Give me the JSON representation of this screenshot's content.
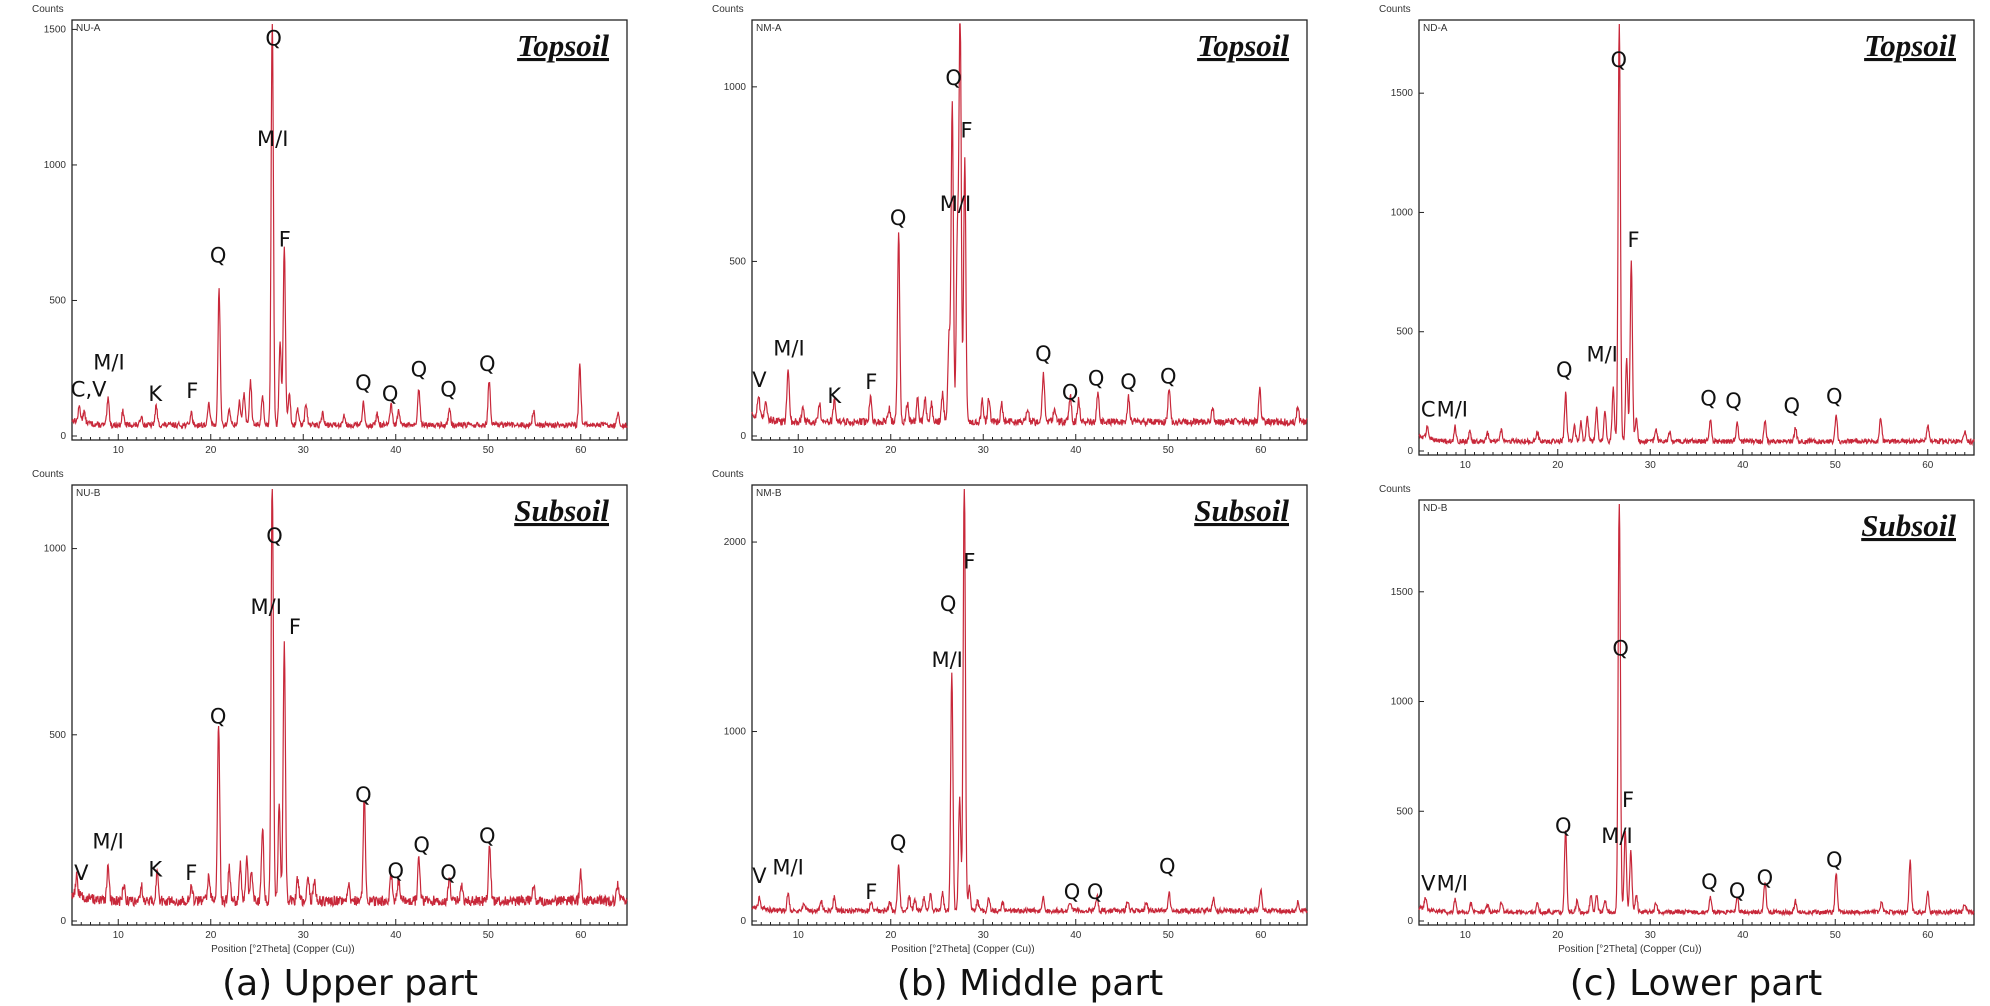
{
  "figure": {
    "x_axis_label": "Position [°2Theta] (Copper (Cu))",
    "y_axis_label": "Counts",
    "captions": [
      "(a) Upper part",
      "(b) Middle part",
      "(c) Lower part"
    ]
  },
  "chart_data": [
    {
      "type": "line",
      "panel_id": "NU-A",
      "soil_label": "Topsoil",
      "xlim": [
        5,
        65
      ],
      "ylim": [
        0,
        1520
      ],
      "y_ticks": [
        0,
        500,
        1000,
        1500
      ],
      "x_ticks": [
        10,
        20,
        30,
        40,
        50,
        60
      ],
      "line_color": "#c8283a",
      "baseline": 30,
      "peaks": [
        [
          5.8,
          55
        ],
        [
          6.3,
          40
        ],
        [
          8.9,
          95
        ],
        [
          10.5,
          50
        ],
        [
          12.5,
          35
        ],
        [
          14.1,
          70
        ],
        [
          17.9,
          45
        ],
        [
          19.8,
          80
        ],
        [
          20.9,
          500
        ],
        [
          22.0,
          60
        ],
        [
          23.1,
          90
        ],
        [
          23.6,
          120
        ],
        [
          24.3,
          160
        ],
        [
          25.6,
          110
        ],
        [
          26.65,
          1520
        ],
        [
          27.5,
          300
        ],
        [
          27.95,
          660
        ],
        [
          28.5,
          120
        ],
        [
          29.4,
          60
        ],
        [
          30.3,
          80
        ],
        [
          32.1,
          45
        ],
        [
          34.4,
          40
        ],
        [
          36.5,
          80
        ],
        [
          38.0,
          40
        ],
        [
          39.5,
          75
        ],
        [
          40.3,
          50
        ],
        [
          42.5,
          130
        ],
        [
          45.8,
          60
        ],
        [
          50.1,
          165
        ],
        [
          54.9,
          50
        ],
        [
          59.9,
          220
        ],
        [
          64.0,
          45
        ]
      ],
      "annotations": [
        {
          "text": "C,V",
          "x": 6.8,
          "y": 145
        },
        {
          "text": "M/I",
          "x": 9.0,
          "y": 245
        },
        {
          "text": "K",
          "x": 14.0,
          "y": 130
        },
        {
          "text": "F",
          "x": 18.0,
          "y": 140
        },
        {
          "text": "Q",
          "x": 20.8,
          "y": 640
        },
        {
          "text": "Q",
          "x": 26.8,
          "y": 1440
        },
        {
          "text": "M/I",
          "x": 26.7,
          "y": 1070
        },
        {
          "text": "F",
          "x": 28.0,
          "y": 700
        },
        {
          "text": "Q",
          "x": 36.5,
          "y": 170
        },
        {
          "text": "Q",
          "x": 39.4,
          "y": 130
        },
        {
          "text": "Q",
          "x": 42.5,
          "y": 220
        },
        {
          "text": "Q",
          "x": 45.7,
          "y": 145
        },
        {
          "text": "Q",
          "x": 49.9,
          "y": 240
        }
      ]
    },
    {
      "type": "line",
      "panel_id": "NU-B",
      "soil_label": "Subsoil",
      "xlim": [
        5,
        65
      ],
      "ylim": [
        0,
        1160
      ],
      "y_ticks": [
        0,
        500,
        1000
      ],
      "x_ticks": [
        10,
        20,
        30,
        40,
        50,
        60
      ],
      "line_color": "#c8283a",
      "baseline": 40,
      "peaks": [
        [
          5.5,
          50
        ],
        [
          8.9,
          90
        ],
        [
          10.6,
          45
        ],
        [
          12.5,
          40
        ],
        [
          14.2,
          75
        ],
        [
          17.9,
          45
        ],
        [
          19.8,
          70
        ],
        [
          20.85,
          480
        ],
        [
          22.0,
          90
        ],
        [
          23.2,
          100
        ],
        [
          23.9,
          110
        ],
        [
          24.4,
          80
        ],
        [
          25.6,
          200
        ],
        [
          26.65,
          1160
        ],
        [
          27.4,
          250
        ],
        [
          27.95,
          690
        ],
        [
          29.4,
          60
        ],
        [
          30.5,
          70
        ],
        [
          31.2,
          50
        ],
        [
          34.9,
          40
        ],
        [
          36.6,
          275
        ],
        [
          39.5,
          70
        ],
        [
          40.3,
          60
        ],
        [
          42.5,
          120
        ],
        [
          45.8,
          60
        ],
        [
          47.1,
          40
        ],
        [
          50.15,
          155
        ],
        [
          54.9,
          40
        ],
        [
          60.0,
          75
        ],
        [
          64.0,
          45
        ]
      ],
      "annotations": [
        {
          "text": "V",
          "x": 6.0,
          "y": 110
        },
        {
          "text": "M/I",
          "x": 8.9,
          "y": 195
        },
        {
          "text": "K",
          "x": 14.0,
          "y": 120
        },
        {
          "text": "F",
          "x": 17.9,
          "y": 110
        },
        {
          "text": "Q",
          "x": 20.8,
          "y": 530
        },
        {
          "text": "Q",
          "x": 26.9,
          "y": 1015
        },
        {
          "text": "M/I",
          "x": 26.0,
          "y": 825
        },
        {
          "text": "F",
          "x": 29.1,
          "y": 770
        },
        {
          "text": "Q",
          "x": 36.5,
          "y": 320
        },
        {
          "text": "Q",
          "x": 40.0,
          "y": 115
        },
        {
          "text": "Q",
          "x": 42.8,
          "y": 185
        },
        {
          "text": "Q",
          "x": 45.7,
          "y": 110
        },
        {
          "text": "Q",
          "x": 49.9,
          "y": 210
        }
      ]
    },
    {
      "type": "line",
      "panel_id": "NM-A",
      "soil_label": "Topsoil",
      "xlim": [
        5,
        65
      ],
      "ylim": [
        0,
        1180
      ],
      "y_ticks": [
        0,
        500,
        1000
      ],
      "x_ticks": [
        10,
        20,
        30,
        40,
        50,
        60
      ],
      "line_color": "#c8283a",
      "baseline": 30,
      "peaks": [
        [
          5.7,
          65
        ],
        [
          6.5,
          55
        ],
        [
          8.9,
          150
        ],
        [
          10.5,
          45
        ],
        [
          12.3,
          50
        ],
        [
          13.9,
          65
        ],
        [
          17.8,
          70
        ],
        [
          19.8,
          40
        ],
        [
          20.85,
          545
        ],
        [
          21.8,
          55
        ],
        [
          22.9,
          65
        ],
        [
          23.7,
          70
        ],
        [
          24.4,
          55
        ],
        [
          25.6,
          80
        ],
        [
          26.3,
          250
        ],
        [
          26.65,
          920
        ],
        [
          27.2,
          520
        ],
        [
          27.5,
          1180
        ],
        [
          28.0,
          750
        ],
        [
          29.9,
          60
        ],
        [
          30.6,
          70
        ],
        [
          32.0,
          50
        ],
        [
          34.8,
          40
        ],
        [
          36.5,
          140
        ],
        [
          37.7,
          45
        ],
        [
          39.4,
          75
        ],
        [
          40.3,
          65
        ],
        [
          42.4,
          85
        ],
        [
          45.7,
          70
        ],
        [
          50.1,
          95
        ],
        [
          54.8,
          45
        ],
        [
          59.9,
          90
        ],
        [
          64.0,
          45
        ]
      ],
      "annotations": [
        {
          "text": "V",
          "x": 5.8,
          "y": 140
        },
        {
          "text": "M/I",
          "x": 9.0,
          "y": 230
        },
        {
          "text": "K",
          "x": 13.9,
          "y": 95
        },
        {
          "text": "F",
          "x": 17.9,
          "y": 135
        },
        {
          "text": "Q",
          "x": 20.8,
          "y": 605
        },
        {
          "text": "Q",
          "x": 26.8,
          "y": 1005
        },
        {
          "text": "F",
          "x": 28.2,
          "y": 855
        },
        {
          "text": "M/I",
          "x": 27.0,
          "y": 645
        },
        {
          "text": "Q",
          "x": 36.5,
          "y": 215
        },
        {
          "text": "Q",
          "x": 39.4,
          "y": 105
        },
        {
          "text": "Q",
          "x": 42.2,
          "y": 145
        },
        {
          "text": "Q",
          "x": 45.7,
          "y": 135
        },
        {
          "text": "Q",
          "x": 50.0,
          "y": 150
        }
      ]
    },
    {
      "type": "line",
      "panel_id": "NM-B",
      "soil_label": "Subsoil",
      "xlim": [
        5,
        65
      ],
      "ylim": [
        0,
        2280
      ],
      "y_ticks": [
        0,
        1000,
        2000
      ],
      "x_ticks": [
        10,
        20,
        30,
        40,
        50,
        60
      ],
      "line_color": "#c8283a",
      "baseline": 40,
      "peaks": [
        [
          5.8,
          60
        ],
        [
          8.9,
          100
        ],
        [
          10.6,
          45
        ],
        [
          12.5,
          50
        ],
        [
          13.9,
          75
        ],
        [
          17.9,
          50
        ],
        [
          19.9,
          45
        ],
        [
          20.85,
          240
        ],
        [
          22.0,
          80
        ],
        [
          22.6,
          60
        ],
        [
          23.6,
          70
        ],
        [
          24.3,
          95
        ],
        [
          25.6,
          100
        ],
        [
          26.6,
          1260
        ],
        [
          27.45,
          600
        ],
        [
          27.95,
          2280
        ],
        [
          28.5,
          130
        ],
        [
          29.4,
          50
        ],
        [
          30.6,
          60
        ],
        [
          32.1,
          40
        ],
        [
          36.5,
          65
        ],
        [
          39.4,
          50
        ],
        [
          42.3,
          80
        ],
        [
          45.6,
          55
        ],
        [
          47.6,
          45
        ],
        [
          50.1,
          90
        ],
        [
          54.9,
          65
        ],
        [
          60.0,
          110
        ],
        [
          64.0,
          45
        ]
      ],
      "annotations": [
        {
          "text": "V",
          "x": 5.8,
          "y": 200
        },
        {
          "text": "M/I",
          "x": 8.9,
          "y": 245
        },
        {
          "text": "F",
          "x": 17.9,
          "y": 115
        },
        {
          "text": "Q",
          "x": 20.8,
          "y": 375
        },
        {
          "text": "Q",
          "x": 26.2,
          "y": 1635
        },
        {
          "text": "M/I",
          "x": 26.1,
          "y": 1340
        },
        {
          "text": "F",
          "x": 28.5,
          "y": 1860
        },
        {
          "text": "Q",
          "x": 39.6,
          "y": 115
        },
        {
          "text": "Q",
          "x": 42.1,
          "y": 115
        },
        {
          "text": "Q",
          "x": 49.9,
          "y": 250
        }
      ]
    },
    {
      "type": "line",
      "panel_id": "ND-A",
      "soil_label": "Topsoil",
      "xlim": [
        5,
        65
      ],
      "ylim": [
        0,
        1790
      ],
      "y_ticks": [
        0,
        500,
        1000,
        1500
      ],
      "x_ticks": [
        10,
        20,
        30,
        40,
        50,
        60
      ],
      "line_color": "#c8283a",
      "baseline": 30,
      "peaks": [
        [
          5.9,
          50
        ],
        [
          8.9,
          60
        ],
        [
          10.5,
          40
        ],
        [
          12.4,
          35
        ],
        [
          13.9,
          45
        ],
        [
          17.8,
          40
        ],
        [
          20.85,
          200
        ],
        [
          21.8,
          60
        ],
        [
          22.5,
          85
        ],
        [
          23.2,
          100
        ],
        [
          24.2,
          140
        ],
        [
          25.1,
          130
        ],
        [
          26.0,
          220
        ],
        [
          26.65,
          1790
        ],
        [
          27.45,
          350
        ],
        [
          27.95,
          750
        ],
        [
          28.5,
          90
        ],
        [
          30.6,
          50
        ],
        [
          32.1,
          40
        ],
        [
          36.5,
          90
        ],
        [
          39.4,
          80
        ],
        [
          42.4,
          85
        ],
        [
          45.7,
          55
        ],
        [
          50.1,
          110
        ],
        [
          54.9,
          105
        ],
        [
          60.0,
          70
        ],
        [
          64.0,
          40
        ]
      ],
      "annotations": [
        {
          "text": "C",
          "x": 6.0,
          "y": 145
        },
        {
          "text": "M/I",
          "x": 8.6,
          "y": 145
        },
        {
          "text": "Q",
          "x": 20.7,
          "y": 310
        },
        {
          "text": "M/I",
          "x": 24.8,
          "y": 375
        },
        {
          "text": "Q",
          "x": 26.6,
          "y": 1610
        },
        {
          "text": "F",
          "x": 28.2,
          "y": 855
        },
        {
          "text": "Q",
          "x": 36.3,
          "y": 190
        },
        {
          "text": "Q",
          "x": 39.0,
          "y": 180
        },
        {
          "text": "Q",
          "x": 45.3,
          "y": 160
        },
        {
          "text": "Q",
          "x": 49.9,
          "y": 200
        }
      ]
    },
    {
      "type": "line",
      "panel_id": "ND-B",
      "soil_label": "Subsoil",
      "xlim": [
        5,
        65
      ],
      "ylim": [
        0,
        1900
      ],
      "y_ticks": [
        0,
        500,
        1000,
        1500
      ],
      "x_ticks": [
        10,
        20,
        30,
        40,
        50,
        60
      ],
      "line_color": "#c8283a",
      "baseline": 30,
      "peaks": [
        [
          5.7,
          50
        ],
        [
          8.9,
          60
        ],
        [
          10.6,
          40
        ],
        [
          12.4,
          35
        ],
        [
          13.9,
          45
        ],
        [
          17.8,
          40
        ],
        [
          20.85,
          380
        ],
        [
          22.1,
          55
        ],
        [
          23.6,
          80
        ],
        [
          24.2,
          75
        ],
        [
          25.1,
          60
        ],
        [
          26.65,
          1900
        ],
        [
          27.3,
          380
        ],
        [
          27.9,
          280
        ],
        [
          28.5,
          80
        ],
        [
          30.6,
          45
        ],
        [
          36.5,
          70
        ],
        [
          39.4,
          70
        ],
        [
          42.4,
          140
        ],
        [
          45.7,
          50
        ],
        [
          50.1,
          180
        ],
        [
          55.0,
          45
        ],
        [
          58.1,
          230
        ],
        [
          60.0,
          90
        ],
        [
          64.0,
          40
        ]
      ],
      "annotations": [
        {
          "text": "V",
          "x": 6.0,
          "y": 140
        },
        {
          "text": "M/I",
          "x": 8.6,
          "y": 140
        },
        {
          "text": "Q",
          "x": 20.6,
          "y": 400
        },
        {
          "text": "Q",
          "x": 26.8,
          "y": 1210
        },
        {
          "text": "F",
          "x": 27.6,
          "y": 520
        },
        {
          "text": "M/I",
          "x": 26.4,
          "y": 355
        },
        {
          "text": "Q",
          "x": 36.4,
          "y": 145
        },
        {
          "text": "Q",
          "x": 39.4,
          "y": 105
        },
        {
          "text": "Q",
          "x": 42.4,
          "y": 165
        },
        {
          "text": "Q",
          "x": 49.9,
          "y": 245
        }
      ]
    }
  ]
}
